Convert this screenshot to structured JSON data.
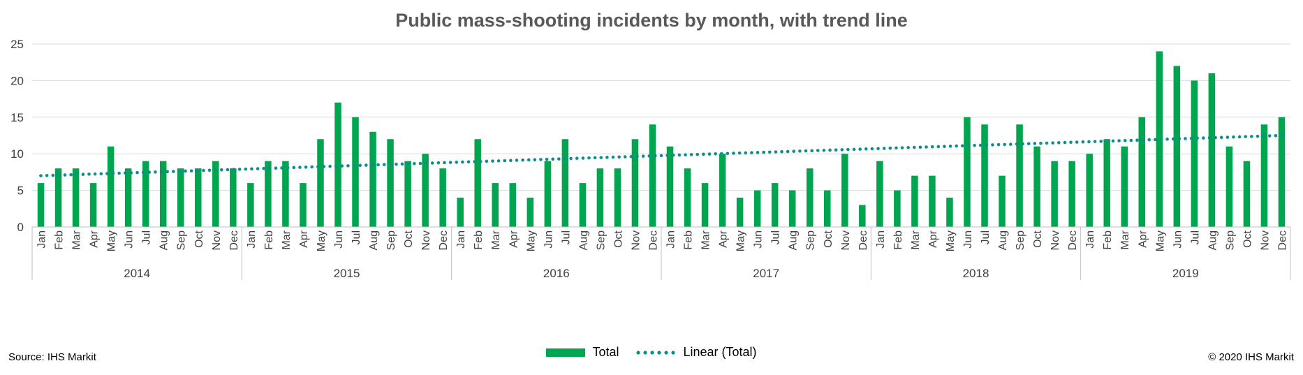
{
  "title": "Public mass-shooting incidents by month, with trend line",
  "source": "Source: IHS Markit",
  "copyright": "© 2020 IHS Markit",
  "legend": {
    "bar_label": "Total",
    "trend_label": "Linear (Total)"
  },
  "colors": {
    "bar": "#00a64f",
    "trend": "#0f8c8c",
    "grid": "#d9d9d9",
    "axis": "#bfbfbf"
  },
  "chart_data": {
    "type": "bar",
    "title": "Public mass-shooting incidents by month, with trend line",
    "ylim": [
      0,
      25
    ],
    "yticks": [
      0,
      5,
      10,
      15,
      20,
      25
    ],
    "grid": true,
    "legend_position": "bottom",
    "years": [
      "2014",
      "2015",
      "2016",
      "2017",
      "2018",
      "2019"
    ],
    "months": [
      "Jan",
      "Feb",
      "Mar",
      "Apr",
      "May",
      "Jun",
      "Jul",
      "Aug",
      "Sep",
      "Oct",
      "Nov",
      "Dec"
    ],
    "series": [
      {
        "name": "Total",
        "values": [
          6,
          8,
          8,
          6,
          11,
          8,
          9,
          9,
          8,
          8,
          9,
          8,
          6,
          9,
          9,
          6,
          12,
          17,
          15,
          13,
          12,
          9,
          10,
          8,
          4,
          12,
          6,
          6,
          4,
          9,
          12,
          6,
          8,
          8,
          12,
          14,
          11,
          8,
          6,
          10,
          4,
          5,
          6,
          5,
          8,
          5,
          10,
          3,
          9,
          5,
          7,
          7,
          4,
          15,
          14,
          7,
          14,
          11,
          9,
          9,
          10,
          12,
          11,
          15,
          24,
          22,
          20,
          21,
          11,
          9,
          14,
          15
        ]
      },
      {
        "name": "Linear (Total)",
        "type": "trend",
        "start_value": 7.0,
        "end_value": 12.5
      }
    ]
  }
}
